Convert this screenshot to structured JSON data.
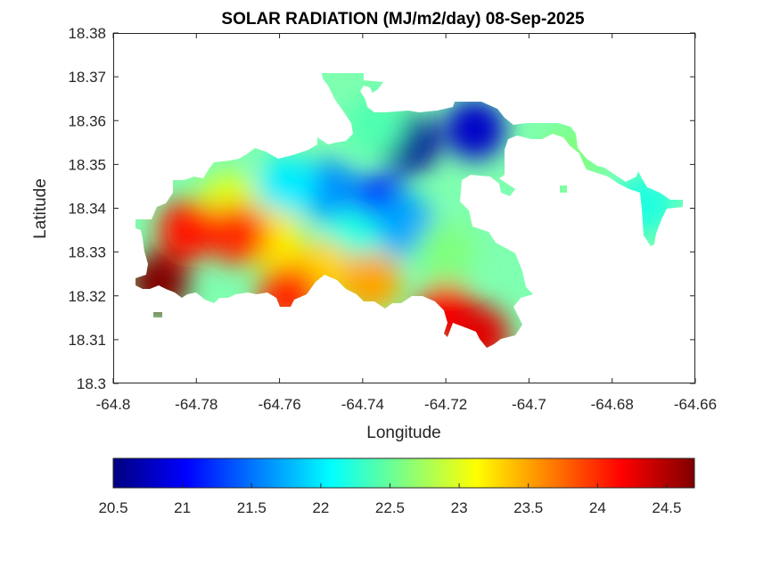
{
  "chart_data": {
    "type": "heatmap",
    "title": "SOLAR RADIATION (MJ/m2/day) 08-Sep-2025",
    "xlabel": "Longitude",
    "ylabel": "Latitude",
    "xlim": [
      -64.8,
      -64.66
    ],
    "ylim": [
      18.3,
      18.38
    ],
    "xticks": [
      "-64.8",
      "-64.78",
      "-64.76",
      "-64.74",
      "-64.72",
      "-64.7",
      "-64.68",
      "-64.66"
    ],
    "yticks": [
      "18.3",
      "18.31",
      "18.32",
      "18.33",
      "18.34",
      "18.35",
      "18.36",
      "18.37",
      "18.38"
    ],
    "grid": false,
    "colormap": "jet",
    "colorbar": {
      "position": "bottom",
      "range": [
        20.5,
        24.7
      ],
      "ticks": [
        "20.5",
        "21",
        "21.5",
        "22",
        "22.5",
        "23",
        "23.5",
        "24",
        "24.5"
      ]
    },
    "hotspots": [
      {
        "lon": -64.729,
        "lat": 18.355,
        "value": 20.6
      },
      {
        "lon": -64.713,
        "lat": 18.358,
        "value": 20.8
      },
      {
        "lon": -64.736,
        "lat": 18.341,
        "value": 21.2
      },
      {
        "lon": -64.748,
        "lat": 18.344,
        "value": 21.6
      },
      {
        "lon": -64.758,
        "lat": 18.345,
        "value": 22.0
      },
      {
        "lon": -64.73,
        "lat": 18.336,
        "value": 21.7
      },
      {
        "lon": -64.743,
        "lat": 18.333,
        "value": 22.2
      },
      {
        "lon": -64.72,
        "lat": 18.33,
        "value": 22.6
      },
      {
        "lon": -64.69,
        "lat": 18.352,
        "value": 22.6
      },
      {
        "lon": -64.672,
        "lat": 18.341,
        "value": 22.2
      },
      {
        "lon": -64.737,
        "lat": 18.359,
        "value": 22.4
      },
      {
        "lon": -64.762,
        "lat": 18.333,
        "value": 23.2
      },
      {
        "lon": -64.75,
        "lat": 18.326,
        "value": 23.3
      },
      {
        "lon": -64.738,
        "lat": 18.323,
        "value": 23.5
      },
      {
        "lon": -64.772,
        "lat": 18.341,
        "value": 23.0
      },
      {
        "lon": -64.77,
        "lat": 18.334,
        "value": 24.0
      },
      {
        "lon": -64.782,
        "lat": 18.335,
        "value": 24.1
      },
      {
        "lon": -64.789,
        "lat": 18.323,
        "value": 24.7
      },
      {
        "lon": -64.72,
        "lat": 18.316,
        "value": 24.2
      },
      {
        "lon": -64.712,
        "lat": 18.311,
        "value": 24.3
      },
      {
        "lon": -64.758,
        "lat": 18.32,
        "value": 24.0
      }
    ]
  }
}
